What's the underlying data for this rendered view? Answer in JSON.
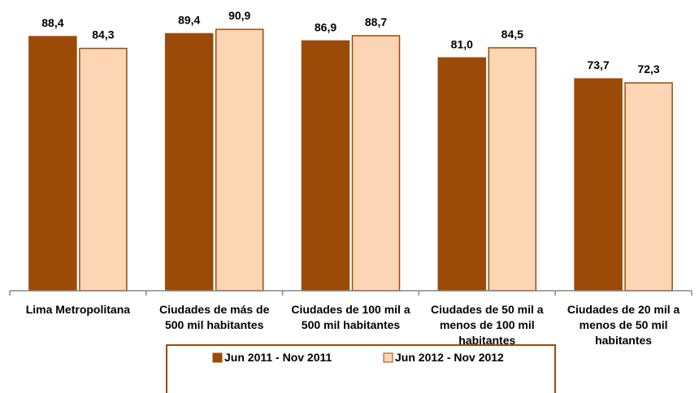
{
  "chart_data": {
    "type": "bar",
    "categories": [
      "Lima Metropolitana",
      "Ciudades de más de 500 mil habitantes",
      "Ciudades de 100 mil a 500 mil habitantes",
      "Ciudades de 50 mil a menos de 100 mil habitantes",
      "Ciudades de 20 mil a menos de 50 mil habitantes"
    ],
    "series": [
      {
        "name": "Jun 2011 - Nov 2011",
        "color": "#9c4a07",
        "values": [
          88.4,
          89.4,
          86.9,
          81.0,
          73.7
        ],
        "value_labels": [
          "88,4",
          "89,4",
          "86,9",
          "81,0",
          "73,7"
        ]
      },
      {
        "name": "Jun 2012 - Nov 2012",
        "color": "#fcd5b5",
        "values": [
          84.3,
          90.9,
          88.7,
          84.5,
          72.3
        ],
        "value_labels": [
          "84,3",
          "90,9",
          "88,7",
          "84,5",
          "72,3"
        ]
      }
    ],
    "ylim": [
      0,
      100
    ],
    "legend": "bottom"
  }
}
